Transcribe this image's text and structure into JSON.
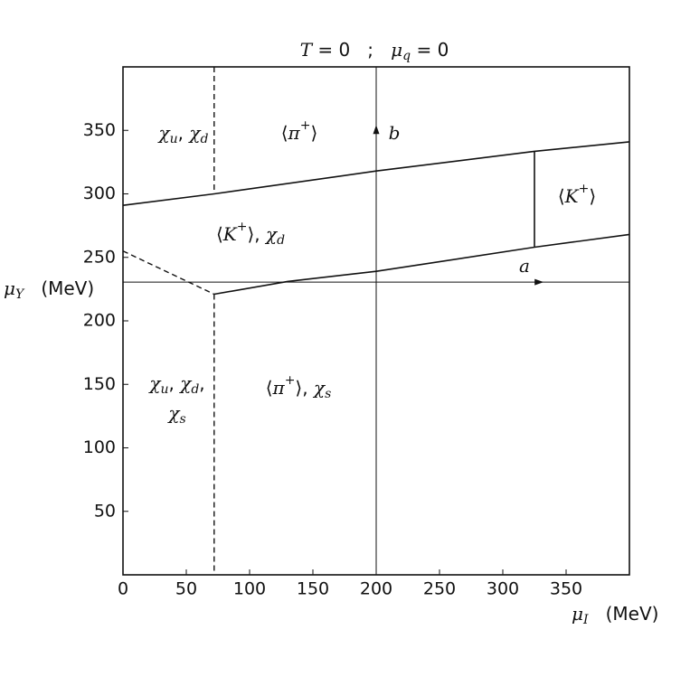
{
  "chart_data": {
    "type": "line",
    "title": [
      {
        "m": "T"
      },
      {
        "t": " = 0   ;   "
      },
      {
        "m": "μ"
      },
      {
        "sub": "q"
      },
      {
        "t": " = 0"
      }
    ],
    "x_label": [
      {
        "m": "μ"
      },
      {
        "sub": "I"
      },
      {
        "t": "   (MeV)"
      }
    ],
    "y_label": [
      {
        "m": "μ"
      },
      {
        "sub": "Y"
      },
      {
        "t": "   (MeV)"
      }
    ],
    "xlim": [
      0,
      400
    ],
    "ylim": [
      0,
      400
    ],
    "xticks": [
      0,
      50,
      100,
      150,
      200,
      250,
      300,
      350
    ],
    "yticks": [
      50,
      100,
      150,
      200,
      250,
      300,
      350
    ],
    "series": [
      {
        "style": "solid",
        "color": "#111",
        "x": [
          0,
          72,
          200,
          325,
          400
        ],
        "y": [
          291,
          300,
          318,
          333.5,
          341
        ]
      },
      {
        "style": "solid",
        "color": "#111",
        "x": [
          72,
          130,
          200,
          325,
          400
        ],
        "y": [
          221,
          231,
          239,
          258,
          268
        ]
      },
      {
        "style": "dashed",
        "color": "#111",
        "x": [
          0,
          72
        ],
        "y": [
          255,
          221
        ]
      },
      {
        "style": "dashed",
        "color": "#111",
        "x": [
          72,
          72
        ],
        "y": [
          400,
          300
        ]
      },
      {
        "style": "dashed",
        "color": "#111",
        "x": [
          72,
          72
        ],
        "y": [
          221,
          0
        ]
      },
      {
        "style": "solid",
        "color": "#111",
        "x": [
          325,
          325
        ],
        "y": [
          258,
          333.5
        ]
      },
      {
        "style": "thin",
        "color": "#111",
        "x": [
          0,
          400
        ],
        "y": [
          230.5,
          230.5
        ],
        "arrow": true
      },
      {
        "style": "thin",
        "color": "#111",
        "x": [
          200,
          200
        ],
        "y": [
          0,
          400
        ],
        "arrow": true
      }
    ],
    "annotations": [
      [
        {
          "m": "χ"
        },
        {
          "sub": "u"
        },
        {
          "t": ", "
        },
        {
          "m": "χ"
        },
        {
          "sub": "d"
        }
      ],
      [
        {
          "t": "⟨"
        },
        {
          "m": "π"
        },
        {
          "sup": "+"
        },
        {
          "t": "⟩"
        }
      ],
      [
        {
          "t": "⟨"
        },
        {
          "m": "K"
        },
        {
          "sup": "+"
        },
        {
          "t": "⟩, "
        },
        {
          "m": "χ"
        },
        {
          "sub": "d"
        }
      ],
      [
        {
          "t": "⟨"
        },
        {
          "m": "K"
        },
        {
          "sup": "+"
        },
        {
          "t": "⟩"
        }
      ],
      [
        {
          "m": "χ"
        },
        {
          "sub": "u"
        },
        {
          "t": ", "
        },
        {
          "m": "χ"
        },
        {
          "sub": "d"
        },
        {
          "t": ","
        }
      ],
      [
        {
          "m": "χ"
        },
        {
          "sub": "s"
        }
      ],
      [
        {
          "t": "⟨"
        },
        {
          "m": "π"
        },
        {
          "sup": "+"
        },
        {
          "t": "⟩, "
        },
        {
          "m": "χ"
        },
        {
          "sub": "s"
        }
      ],
      [
        {
          "m": "a"
        }
      ],
      [
        {
          "m": "b"
        }
      ]
    ]
  }
}
